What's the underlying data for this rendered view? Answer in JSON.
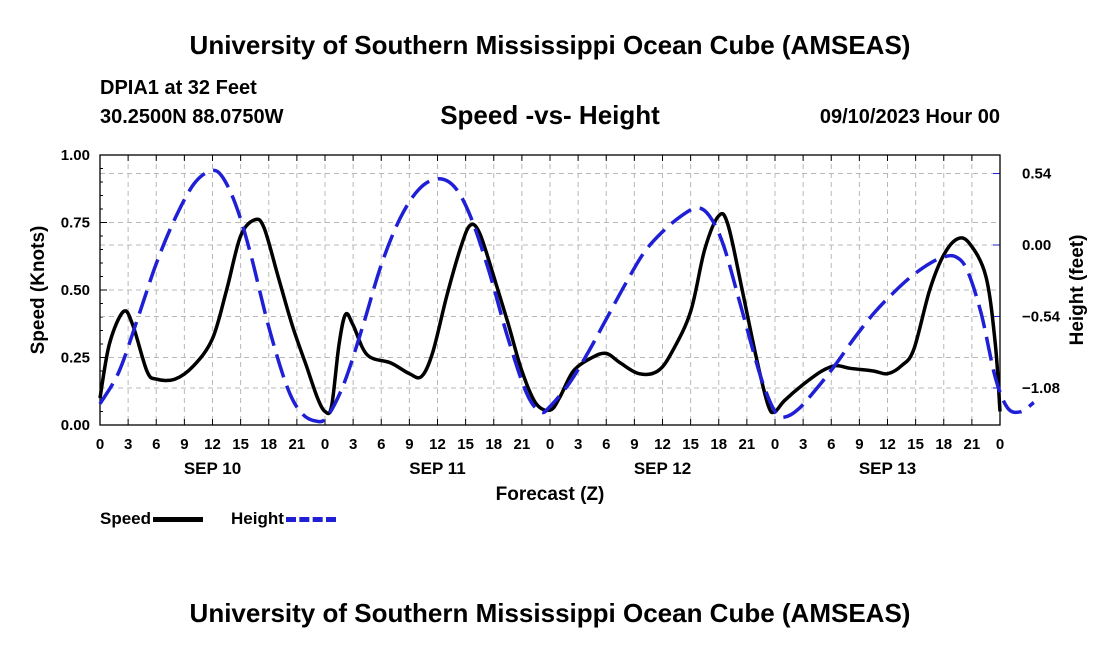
{
  "header": {
    "title": "University of Southern Mississippi Ocean Cube (AMSEAS)",
    "station": "DPIA1 at 32 Feet",
    "coords": "30.2500N  88.0750W",
    "subtitle": "Speed -vs- Height",
    "datestamp": "09/10/2023 Hour 00"
  },
  "footer": {
    "title": "University of Southern Mississippi Ocean Cube (AMSEAS)"
  },
  "legend": {
    "speed_label": "Speed",
    "height_label": "Height"
  },
  "chart_data": {
    "type": "line",
    "xlabel": "Forecast (Z)",
    "ylabel_left": "Speed (Knots)",
    "ylabel_right": "Height (feet)",
    "x_range_hours": [
      0,
      96
    ],
    "x_tick_step_hours": 3,
    "x_tick_labels": [
      "0",
      "3",
      "6",
      "9",
      "12",
      "15",
      "18",
      "21"
    ],
    "day_labels": [
      {
        "label": "SEP 10",
        "hour": 12
      },
      {
        "label": "SEP 11",
        "hour": 36
      },
      {
        "label": "SEP 12",
        "hour": 60
      },
      {
        "label": "SEP 13",
        "hour": 84
      }
    ],
    "left_axis": {
      "range": [
        0,
        1
      ],
      "ticks": [
        0,
        0.25,
        0.5,
        0.75,
        1
      ],
      "tick_labels": [
        "0.00",
        "0.25",
        "0.50",
        "0.75",
        "1.00"
      ]
    },
    "right_axis": {
      "range": [
        -1.36,
        0.68
      ],
      "ticks": [
        -1.08,
        -0.54,
        0,
        0.54
      ],
      "tick_labels": [
        "−1.08",
        "−0.54",
        "0.00",
        "0.54"
      ]
    },
    "grid": true,
    "series": [
      {
        "name": "Speed",
        "axis": "left",
        "color": "#000000",
        "style": "solid",
        "points": [
          [
            0,
            0.1
          ],
          [
            1,
            0.3
          ],
          [
            2.5,
            0.42
          ],
          [
            3.5,
            0.37
          ],
          [
            5,
            0.2
          ],
          [
            6,
            0.17
          ],
          [
            8,
            0.17
          ],
          [
            10,
            0.22
          ],
          [
            12,
            0.32
          ],
          [
            13.5,
            0.5
          ],
          [
            15,
            0.7
          ],
          [
            16.5,
            0.76
          ],
          [
            17.5,
            0.73
          ],
          [
            19,
            0.55
          ],
          [
            20.5,
            0.37
          ],
          [
            22,
            0.22
          ],
          [
            23.2,
            0.1
          ],
          [
            24,
            0.05
          ],
          [
            24.7,
            0.07
          ],
          [
            25.5,
            0.3
          ],
          [
            26.2,
            0.41
          ],
          [
            27,
            0.37
          ],
          [
            28.5,
            0.26
          ],
          [
            31,
            0.23
          ],
          [
            33,
            0.19
          ],
          [
            34.3,
            0.18
          ],
          [
            35.5,
            0.27
          ],
          [
            37,
            0.48
          ],
          [
            38.5,
            0.66
          ],
          [
            39.5,
            0.74
          ],
          [
            40.5,
            0.71
          ],
          [
            42,
            0.55
          ],
          [
            43.5,
            0.38
          ],
          [
            45,
            0.2
          ],
          [
            46.5,
            0.08
          ],
          [
            48,
            0.055
          ],
          [
            49,
            0.1
          ],
          [
            50.5,
            0.2
          ],
          [
            52.5,
            0.25
          ],
          [
            54,
            0.265
          ],
          [
            55.5,
            0.23
          ],
          [
            57.5,
            0.19
          ],
          [
            59.5,
            0.2
          ],
          [
            61,
            0.27
          ],
          [
            63,
            0.42
          ],
          [
            64.5,
            0.65
          ],
          [
            66,
            0.775
          ],
          [
            67,
            0.74
          ],
          [
            68.5,
            0.5
          ],
          [
            70,
            0.25
          ],
          [
            71.3,
            0.07
          ],
          [
            72,
            0.05
          ],
          [
            73,
            0.09
          ],
          [
            75,
            0.15
          ],
          [
            77,
            0.2
          ],
          [
            78.5,
            0.22
          ],
          [
            80,
            0.21
          ],
          [
            82.5,
            0.2
          ],
          [
            84,
            0.19
          ],
          [
            85.5,
            0.22
          ],
          [
            86.8,
            0.28
          ],
          [
            88.5,
            0.5
          ],
          [
            90,
            0.63
          ],
          [
            91.5,
            0.69
          ],
          [
            92.8,
            0.67
          ],
          [
            94.5,
            0.55
          ],
          [
            95.5,
            0.3
          ],
          [
            96,
            0.05
          ]
        ]
      },
      {
        "name": "Height",
        "axis": "right",
        "color": "#1f1fd6",
        "style": "dashed",
        "points": [
          [
            0,
            -1.2
          ],
          [
            2,
            -0.96
          ],
          [
            4,
            -0.56
          ],
          [
            6,
            -0.14
          ],
          [
            8,
            0.2
          ],
          [
            10,
            0.46
          ],
          [
            11.8,
            0.56
          ],
          [
            13,
            0.52
          ],
          [
            14.5,
            0.3
          ],
          [
            16,
            -0.05
          ],
          [
            18,
            -0.62
          ],
          [
            20,
            -1.08
          ],
          [
            21.5,
            -1.27
          ],
          [
            23,
            -1.33
          ],
          [
            24.2,
            -1.3
          ],
          [
            26,
            -1.05
          ],
          [
            28,
            -0.62
          ],
          [
            30,
            -0.15
          ],
          [
            32,
            0.2
          ],
          [
            34,
            0.42
          ],
          [
            36,
            0.5
          ],
          [
            37.8,
            0.44
          ],
          [
            39.5,
            0.22
          ],
          [
            41.5,
            -0.2
          ],
          [
            43.5,
            -0.7
          ],
          [
            45.5,
            -1.12
          ],
          [
            47,
            -1.26
          ],
          [
            48,
            -1.22
          ],
          [
            50,
            -1.05
          ],
          [
            52,
            -0.82
          ],
          [
            54,
            -0.56
          ],
          [
            56,
            -0.3
          ],
          [
            58,
            -0.06
          ],
          [
            60,
            0.1
          ],
          [
            62,
            0.22
          ],
          [
            63.7,
            0.28
          ],
          [
            65,
            0.22
          ],
          [
            66.5,
            0.0
          ],
          [
            68.5,
            -0.5
          ],
          [
            70.5,
            -1.0
          ],
          [
            72,
            -1.26
          ],
          [
            73,
            -1.3
          ],
          [
            74.5,
            -1.24
          ],
          [
            76.5,
            -1.08
          ],
          [
            78.5,
            -0.9
          ],
          [
            80.5,
            -0.7
          ],
          [
            82.5,
            -0.52
          ],
          [
            84.5,
            -0.37
          ],
          [
            86.5,
            -0.24
          ],
          [
            88.5,
            -0.14
          ],
          [
            90,
            -0.09
          ],
          [
            91.3,
            -0.09
          ],
          [
            92.5,
            -0.19
          ],
          [
            94,
            -0.52
          ],
          [
            95.5,
            -1.0
          ],
          [
            96.8,
            -1.23
          ],
          [
            98.2,
            -1.26
          ],
          [
            99.6,
            -1.19
          ]
        ]
      }
    ]
  }
}
